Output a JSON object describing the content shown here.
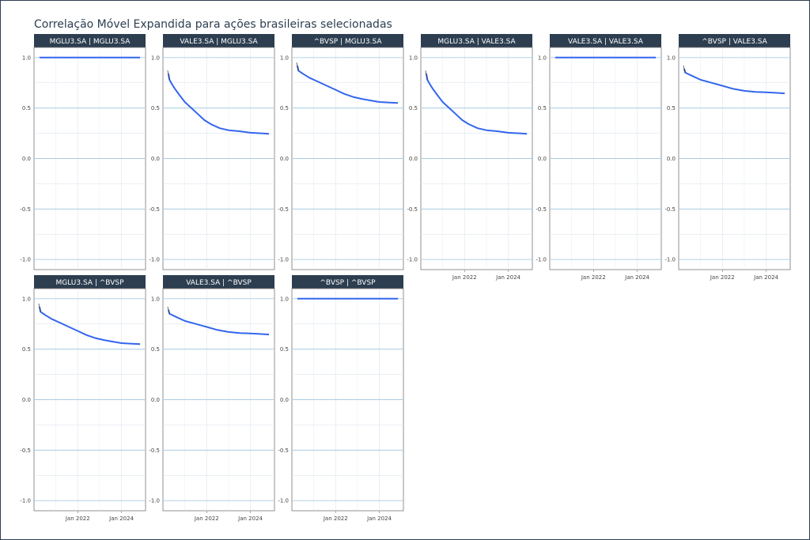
{
  "chart_data": {
    "type": "line",
    "title": "Correlação Móvel Expandida para ações brasileiras selecionadas",
    "facet_layout": "3x3 grid of row|column pairs, 6 panels per row",
    "y_ticks": [
      "1.0",
      "0.5",
      "0.0",
      "-0.5",
      "-1.0"
    ],
    "ylim": [
      -1.1,
      1.1
    ],
    "x_tick_labels": [
      "Jan 2022",
      "Jan 2024"
    ],
    "x_ticks": [
      2022,
      2024
    ],
    "xlim": [
      2020.0,
      2025.1
    ],
    "grid": true,
    "colors": {
      "strip": "#2c3e50",
      "line": "#3366ee",
      "grid": "#dde6ee",
      "reference_line": "#a9cce3"
    },
    "panels": [
      {
        "label": "MGLU3.SA | MGLU3.SA",
        "x": [
          2020.25,
          2024.85
        ],
        "y": [
          1.0,
          1.0
        ],
        "x_axis_labels": false
      },
      {
        "label": "VALE3.SA | MGLU3.SA",
        "x": [
          2020.25,
          2020.3,
          2020.4,
          2020.55,
          2020.75,
          2021.0,
          2021.3,
          2021.6,
          2021.9,
          2022.2,
          2022.6,
          2023.0,
          2023.5,
          2024.0,
          2024.5,
          2024.85
        ],
        "y": [
          0.84,
          0.78,
          0.74,
          0.69,
          0.63,
          0.56,
          0.5,
          0.44,
          0.38,
          0.34,
          0.3,
          0.28,
          0.27,
          0.255,
          0.25,
          0.245
        ],
        "x_axis_labels": false
      },
      {
        "label": "^BVSP | MGLU3.SA",
        "x": [
          2020.25,
          2020.3,
          2020.5,
          2020.8,
          2021.2,
          2021.6,
          2022.0,
          2022.4,
          2022.8,
          2023.2,
          2023.6,
          2024.0,
          2024.4,
          2024.85
        ],
        "y": [
          0.92,
          0.87,
          0.84,
          0.8,
          0.76,
          0.72,
          0.68,
          0.64,
          0.61,
          0.59,
          0.575,
          0.56,
          0.555,
          0.55
        ],
        "x_axis_labels": false
      },
      {
        "label": "MGLU3.SA | VALE3.SA",
        "x": [
          2020.25,
          2020.3,
          2020.4,
          2020.55,
          2020.75,
          2021.0,
          2021.3,
          2021.6,
          2021.9,
          2022.2,
          2022.6,
          2023.0,
          2023.5,
          2024.0,
          2024.5,
          2024.85
        ],
        "y": [
          0.84,
          0.78,
          0.74,
          0.69,
          0.63,
          0.56,
          0.5,
          0.44,
          0.38,
          0.34,
          0.3,
          0.28,
          0.27,
          0.255,
          0.25,
          0.245
        ],
        "x_axis_labels": true
      },
      {
        "label": "VALE3.SA | VALE3.SA",
        "x": [
          2020.25,
          2024.85
        ],
        "y": [
          1.0,
          1.0
        ],
        "x_axis_labels": true
      },
      {
        "label": "^BVSP | VALE3.SA",
        "x": [
          2020.25,
          2020.3,
          2020.6,
          2021.0,
          2021.5,
          2022.0,
          2022.5,
          2023.0,
          2023.5,
          2024.0,
          2024.5,
          2024.85
        ],
        "y": [
          0.89,
          0.85,
          0.82,
          0.78,
          0.75,
          0.72,
          0.69,
          0.67,
          0.66,
          0.655,
          0.65,
          0.645
        ],
        "x_axis_labels": true
      },
      {
        "label": "MGLU3.SA | ^BVSP",
        "x": [
          2020.25,
          2020.3,
          2020.5,
          2020.8,
          2021.2,
          2021.6,
          2022.0,
          2022.4,
          2022.8,
          2023.2,
          2023.6,
          2024.0,
          2024.4,
          2024.85
        ],
        "y": [
          0.92,
          0.87,
          0.84,
          0.8,
          0.76,
          0.72,
          0.68,
          0.64,
          0.61,
          0.59,
          0.575,
          0.56,
          0.555,
          0.55
        ],
        "x_axis_labels": true
      },
      {
        "label": "VALE3.SA | ^BVSP",
        "x": [
          2020.25,
          2020.3,
          2020.6,
          2021.0,
          2021.5,
          2022.0,
          2022.5,
          2023.0,
          2023.5,
          2024.0,
          2024.5,
          2024.85
        ],
        "y": [
          0.89,
          0.85,
          0.82,
          0.78,
          0.75,
          0.72,
          0.69,
          0.67,
          0.66,
          0.655,
          0.65,
          0.645
        ],
        "x_axis_labels": true
      },
      {
        "label": "^BVSP | ^BVSP",
        "x": [
          2020.25,
          2024.85
        ],
        "y": [
          1.0,
          1.0
        ],
        "x_axis_labels": true
      }
    ]
  }
}
